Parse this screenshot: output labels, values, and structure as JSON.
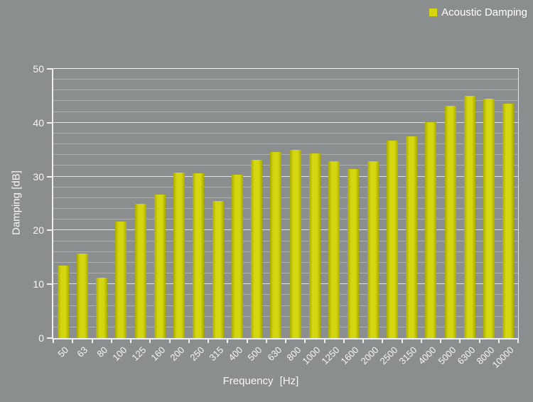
{
  "chart_data": {
    "type": "bar",
    "legend": "Acoustic Damping",
    "legend_position": "top-right",
    "xlabel": "Frequency [Hz]",
    "ylabel": "Damping [dB]",
    "categories": [
      "50",
      "63",
      "80",
      "100",
      "125",
      "160",
      "200",
      "250",
      "315",
      "400",
      "500",
      "630",
      "800",
      "1000",
      "1250",
      "1600",
      "2000",
      "2500",
      "3150",
      "4000",
      "5000",
      "6300",
      "8000",
      "10000"
    ],
    "values": [
      13.4,
      15.7,
      11.2,
      21.6,
      25.0,
      26.6,
      30.8,
      30.6,
      25.4,
      30.4,
      33.1,
      34.6,
      35.0,
      34.3,
      32.8,
      31.4,
      32.8,
      36.7,
      37.5,
      40.1,
      43.2,
      45.0,
      44.5,
      43.5
    ],
    "ylim": [
      0,
      50
    ],
    "ytick_step": 10,
    "minor_grid_step": 2,
    "yticks": [
      "0",
      "10",
      "20",
      "30",
      "40",
      "50"
    ],
    "grid": "on",
    "colors": {
      "background": "#8b8e8f",
      "bar": "#d4d60f",
      "bar_edge": "#a9ab00",
      "axis_text": "#f5f5f5",
      "legend_text": "#ffffff"
    }
  }
}
